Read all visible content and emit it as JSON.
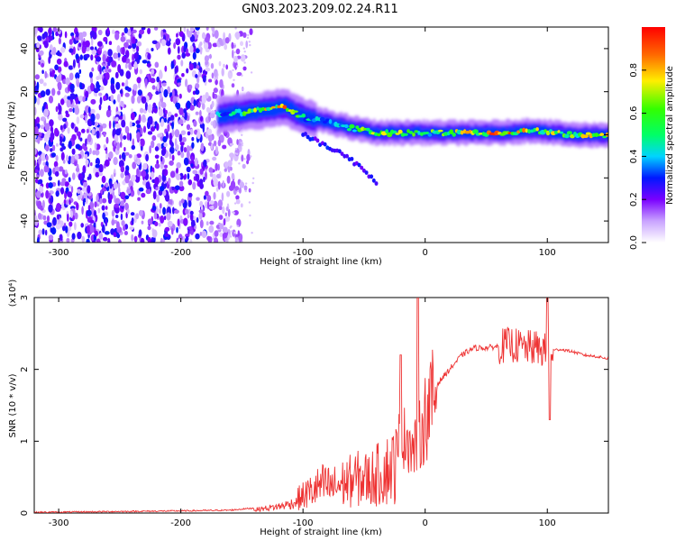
{
  "title": "GN03.2023.209.02.24.R11",
  "chart_data": [
    {
      "type": "heatmap",
      "xlabel": "Height of straight line (km)",
      "ylabel": "Frequency (Hz)",
      "xlim": [
        -320,
        150
      ],
      "ylim": [
        -50,
        50
      ],
      "xticks": [
        -300,
        -200,
        -100,
        0,
        100
      ],
      "yticks": [
        -40,
        -20,
        0,
        20,
        40
      ],
      "colorbar": {
        "label": "Normalized spectral amplitude",
        "range": [
          0,
          1
        ],
        "ticks": [
          "0.0",
          "0.2",
          "0.4",
          "0.6",
          "0.8"
        ],
        "tick_values": [
          0,
          0.2,
          0.4,
          0.6,
          0.8
        ]
      },
      "ridge": [
        {
          "x": -170,
          "y": 9,
          "amp": 0.4
        },
        {
          "x": -140,
          "y": 11,
          "amp": 0.7
        },
        {
          "x": -115,
          "y": 13,
          "amp": 0.9
        },
        {
          "x": -100,
          "y": 8,
          "amp": 0.5
        },
        {
          "x": -80,
          "y": 6,
          "amp": 0.5
        },
        {
          "x": -60,
          "y": 3,
          "amp": 0.6
        },
        {
          "x": -40,
          "y": 1,
          "amp": 0.8
        },
        {
          "x": -20,
          "y": 1,
          "amp": 0.7
        },
        {
          "x": 0,
          "y": 1,
          "amp": 0.6
        },
        {
          "x": 30,
          "y": 1,
          "amp": 0.8
        },
        {
          "x": 60,
          "y": 1,
          "amp": 0.9
        },
        {
          "x": 90,
          "y": 2,
          "amp": 0.8
        },
        {
          "x": 120,
          "y": 0,
          "amp": 0.7
        },
        {
          "x": 150,
          "y": 0,
          "amp": 0.95
        }
      ],
      "branch": [
        {
          "x": -100,
          "y": 0
        },
        {
          "x": -70,
          "y": -8
        },
        {
          "x": -50,
          "y": -16
        },
        {
          "x": -40,
          "y": -22
        }
      ]
    },
    {
      "type": "line",
      "xlabel": "Height of straight line (km)",
      "ylabel": "SNR (10 * v/v)",
      "multiplier": "(x10⁴)",
      "xlim": [
        -320,
        150
      ],
      "ylim": [
        0,
        3
      ],
      "xticks": [
        -300,
        -200,
        -100,
        0,
        100
      ],
      "yticks": [
        0,
        1,
        2,
        3
      ],
      "color": "#ee3333",
      "series": [
        {
          "x": [
            -320,
            -200,
            -160,
            -140,
            -120,
            -105,
            -95,
            -85,
            -75,
            -65,
            -55,
            -45,
            -35,
            -25,
            -20,
            -15,
            -10,
            -5,
            0,
            5,
            10,
            20,
            30,
            40,
            50,
            60,
            70,
            80,
            90,
            100,
            110,
            120,
            130,
            140,
            150
          ],
          "y": [
            0.0,
            0.02,
            0.03,
            0.06,
            0.12,
            0.2,
            0.3,
            0.4,
            0.38,
            0.45,
            0.5,
            0.5,
            0.6,
            0.7,
            0.9,
            1.2,
            0.9,
            1.1,
            1.4,
            1.6,
            1.8,
            2.0,
            2.2,
            2.3,
            2.3,
            2.32,
            2.35,
            2.3,
            2.3,
            2.25,
            2.28,
            2.25,
            2.2,
            2.18,
            2.15
          ]
        }
      ]
    }
  ]
}
